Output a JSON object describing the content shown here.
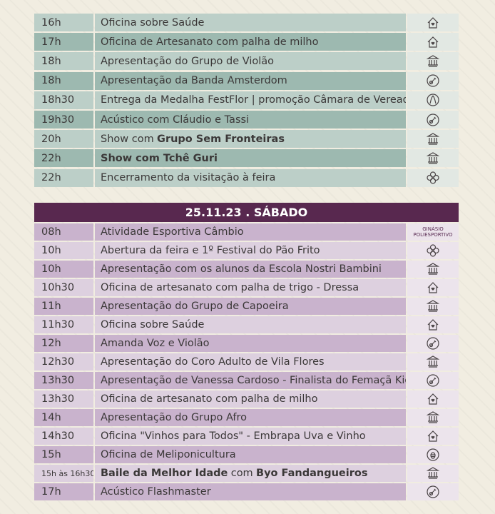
{
  "sections": [
    {
      "rows": [
        {
          "time": "16h",
          "event": "Oficina sobre Saúde"
        },
        {
          "time": "17h",
          "event": "Oficina de Artesanato com palha de milho"
        },
        {
          "time": "18h",
          "event": "Apresentação do Grupo de Violão"
        },
        {
          "time": "18h",
          "event": "Apresentação da Banda Amsterdom"
        },
        {
          "time": "18h30",
          "event": "Entrega da Medalha FestFlor | promoção Câmara de Vereadores"
        },
        {
          "time": "19h30",
          "event": "Acústico com Cláudio e Tassi"
        },
        {
          "time": "20h",
          "parts": [
            {
              "text": "Show com"
            },
            {
              "text": "Grupo Sem Fronteiras",
              "bold": true
            }
          ]
        },
        {
          "time": "22h",
          "event": "Show com Tchê Guri",
          "bold": true
        },
        {
          "time": "22h",
          "event": "Encerramento da visitação à feira"
        }
      ]
    },
    {
      "header": "25.11.23 . SÁBADO",
      "rows": [
        {
          "time": "08h",
          "event": "Atividade Esportiva Câmbio",
          "venue": [
            "GINÁSIO",
            "POLIESPORTIVO"
          ]
        },
        {
          "time": "10h",
          "event": "Abertura da feira e 1º Festival do Pão Frito"
        },
        {
          "time": "10h",
          "event": "Apresentação com os alunos da Escola Nostri Bambini"
        },
        {
          "time": "10h30",
          "event": "Oficina de artesanato com palha de trigo - Dressa"
        },
        {
          "time": "11h",
          "event": "Apresentação do Grupo de Capoeira"
        },
        {
          "time": "11h30",
          "event": "Oficina sobre Saúde"
        },
        {
          "time": "12h",
          "event": "Amanda Voz e Violão"
        },
        {
          "time": "12h30",
          "event": "Apresentação do Coro Adulto de Vila Flores"
        },
        {
          "time": "13h30",
          "event": "Apresentação de Vanessa Cardoso - Finalista do Femaçã Kids"
        },
        {
          "time": "13h30",
          "event": "Oficina de artesanato com palha de milho"
        },
        {
          "time": "14h",
          "event": "Apresentação do Grupo Afro"
        },
        {
          "time": "14h30",
          "event": "Oficina \"Vinhos para Todos\" - Embrapa Uva e Vinho"
        },
        {
          "time": "15h",
          "event": "Oficina de Meliponicultura"
        },
        {
          "time": "15h às 16h30",
          "parts": [
            {
              "text": "Baile da Melhor Idade",
              "bold": true
            },
            {
              "text": "com"
            },
            {
              "text": "Byo Fandangueiros",
              "bold": true
            }
          ]
        },
        {
          "time": "17h",
          "event": "Acústico Flashmaster"
        }
      ]
    }
  ]
}
